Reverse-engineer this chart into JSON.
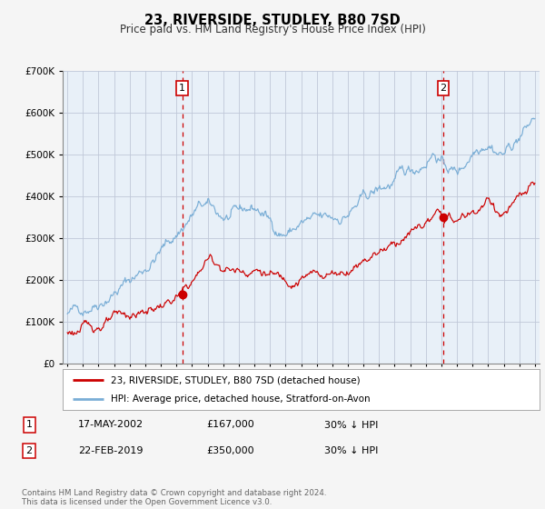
{
  "title": "23, RIVERSIDE, STUDLEY, B80 7SD",
  "subtitle": "Price paid vs. HM Land Registry's House Price Index (HPI)",
  "legend_line1": "23, RIVERSIDE, STUDLEY, B80 7SD (detached house)",
  "legend_line2": "HPI: Average price, detached house, Stratford-on-Avon",
  "red_color": "#cc0000",
  "blue_color": "#7aaed6",
  "annotation_border_color": "#cc0000",
  "sale1_date": "17-MAY-2002",
  "sale1_price_label": "£167,000",
  "sale1_hpi": "30% ↓ HPI",
  "sale1_year": 2002.37,
  "sale1_price": 167000,
  "sale2_date": "22-FEB-2019",
  "sale2_price_label": "£350,000",
  "sale2_hpi": "30% ↓ HPI",
  "sale2_year": 2019.13,
  "sale2_price": 350000,
  "ylim": [
    0,
    700000
  ],
  "xlim_start": 1994.7,
  "xlim_end": 2025.3,
  "footer": "Contains HM Land Registry data © Crown copyright and database right 2024.\nThis data is licensed under the Open Government Licence v3.0.",
  "background_color": "#f5f5f5",
  "plot_bg_color": "#e8f0f8"
}
